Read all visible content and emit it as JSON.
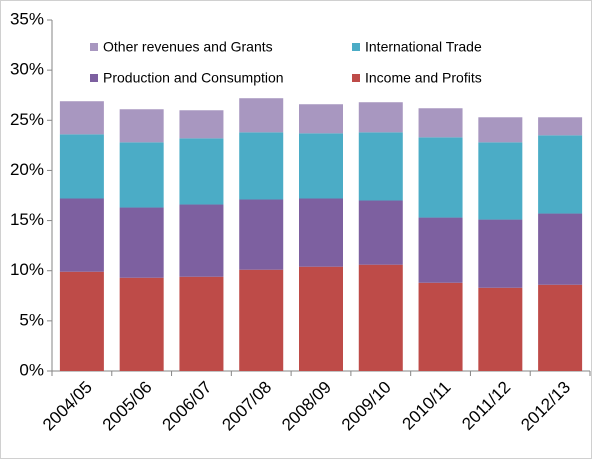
{
  "chart_data": {
    "type": "stacked-bar",
    "categories": [
      "2004/05",
      "2005/06",
      "2006/07",
      "2007/08",
      "2008/09",
      "2009/10",
      "2010/11",
      "2011/12",
      "2012/13"
    ],
    "series": [
      {
        "name": "Income and Profits",
        "color": "#be4b48",
        "values": [
          9.9,
          9.3,
          9.4,
          10.1,
          10.4,
          10.6,
          8.8,
          8.3,
          8.6
        ]
      },
      {
        "name": "Production and Consumption",
        "color": "#7d60a0",
        "values": [
          7.3,
          7.0,
          7.2,
          7.0,
          6.8,
          6.4,
          6.5,
          6.8,
          7.1
        ]
      },
      {
        "name": "International Trade",
        "color": "#4bacc6",
        "values": [
          6.4,
          6.5,
          6.6,
          6.7,
          6.5,
          6.8,
          8.0,
          7.7,
          7.8
        ]
      },
      {
        "name": "Other revenues and Grants",
        "color": "#a897c0",
        "values": [
          3.3,
          3.3,
          2.8,
          3.4,
          2.9,
          3.0,
          2.9,
          2.5,
          1.8
        ]
      }
    ],
    "ylim": [
      0,
      35
    ],
    "yticks": [
      {
        "value": 0,
        "label": "0%"
      },
      {
        "value": 5,
        "label": "5%"
      },
      {
        "value": 10,
        "label": "10%"
      },
      {
        "value": 15,
        "label": "15%"
      },
      {
        "value": 20,
        "label": "20%"
      },
      {
        "value": 25,
        "label": "25%"
      },
      {
        "value": 30,
        "label": "30%"
      },
      {
        "value": 35,
        "label": "35%"
      }
    ]
  }
}
